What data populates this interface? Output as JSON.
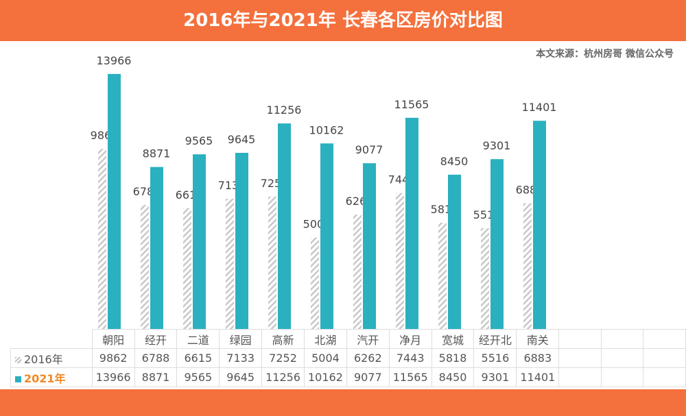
{
  "header": {
    "title": "2016年与2021年 长春各区房价对比图"
  },
  "source": "本文来源：杭州房哥 微信公众号",
  "colors": {
    "banner": "#F4703C",
    "series_2016": "#C8C8C8",
    "series_2021": "#2BB0BF",
    "legend_2021_text": "#F08A24"
  },
  "chart_data": {
    "type": "bar",
    "title": "2016年与2021年 长春各区房价对比图",
    "categories": [
      "朝阳",
      "经开",
      "二道",
      "绿园",
      "高新",
      "北湖",
      "汽开",
      "净月",
      "宽城",
      "经开北",
      "南关"
    ],
    "series": [
      {
        "name": "2016年",
        "pattern": "hatched-gray",
        "values": [
          9862,
          6788,
          6615,
          7133,
          7252,
          5004,
          6262,
          7443,
          5818,
          5516,
          6883
        ]
      },
      {
        "name": "2021年",
        "pattern": "solid-teal",
        "values": [
          13966,
          8871,
          9565,
          9645,
          11256,
          10162,
          9077,
          11565,
          8450,
          9301,
          11401
        ]
      }
    ],
    "ylim": [
      0,
      14000
    ],
    "grid": false,
    "legend": "data-table-below",
    "data_labels": true
  }
}
